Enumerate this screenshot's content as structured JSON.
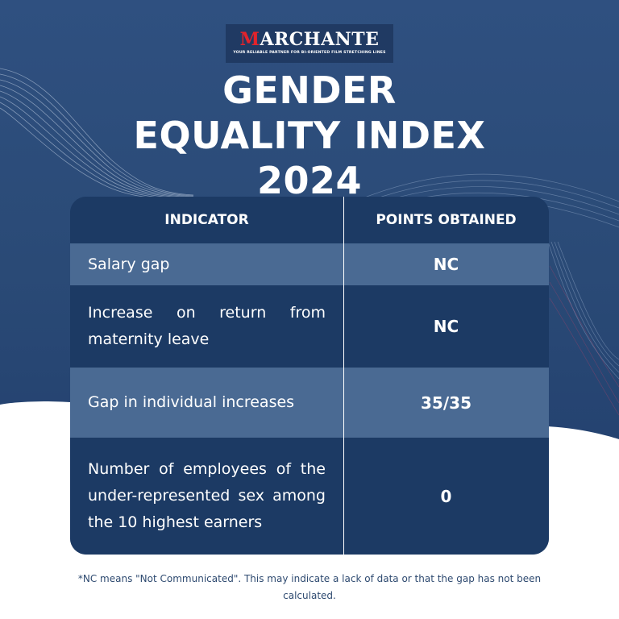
{
  "logo": {
    "first_letter": "M",
    "rest": "ARCHANTE",
    "tagline": "YOUR RELIABLE PARTNER FOR BI-ORIENTED FILM STRETCHING LINES"
  },
  "title": {
    "line1": "GENDER",
    "line2": "EQUALITY INDEX",
    "line3": "2024"
  },
  "table": {
    "headers": {
      "indicator": "INDICATOR",
      "points": "POINTS OBTAINED"
    },
    "rows": [
      {
        "indicator": "Salary gap",
        "points": "NC"
      },
      {
        "indicator": "Increase on return from maternity leave",
        "points": "NC"
      },
      {
        "indicator": "Gap in individual increases",
        "points": "35/35"
      },
      {
        "indicator": "Number of employees of the under-represented sex among the 10 highest earners",
        "points": "0"
      }
    ]
  },
  "footnote": "*NC means \"Not Communicated\". This may indicate a lack of data or that the gap has not been calculated.",
  "colors": {
    "background_top": "#2d4d78",
    "table_dark": "#1c3a64",
    "table_light": "#4a6a93",
    "logo_accent": "#e3232b"
  }
}
